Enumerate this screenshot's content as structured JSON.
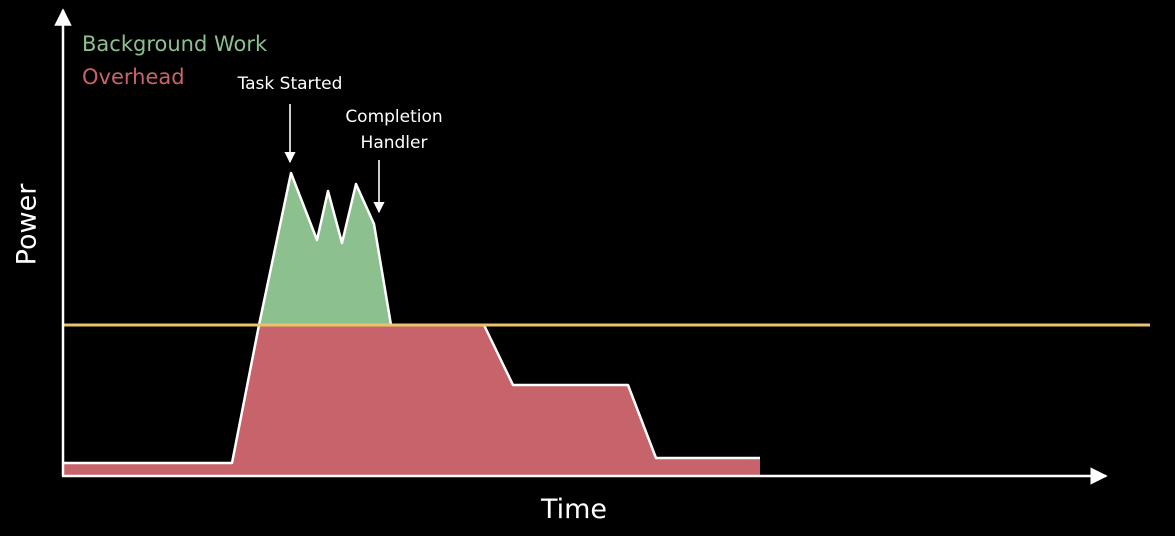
{
  "colors": {
    "background": "#000000",
    "background_work": "#8cc08f",
    "overhead": "#c7636a",
    "threshold_line": "#e9c46a",
    "axis": "#ffffff"
  },
  "legend": {
    "background_work": "Background Work",
    "overhead": "Overhead"
  },
  "annotations": {
    "task_started": "Task Started",
    "completion_handler_line1": "Completion",
    "completion_handler_line2": "Handler"
  },
  "axes": {
    "y_label": "Power",
    "x_label": "Time"
  }
}
